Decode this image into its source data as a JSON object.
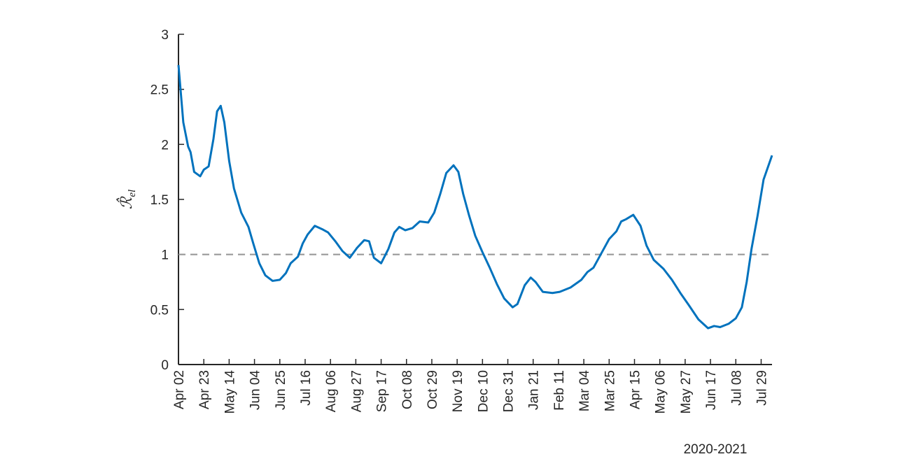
{
  "chart_data": {
    "type": "line",
    "xlabel": "2020-2021",
    "ylabel": {
      "main": "ℛ̂",
      "sub": "el"
    },
    "x": [
      0,
      4,
      8,
      10,
      13,
      18,
      21,
      25,
      29,
      32,
      35,
      38,
      42,
      46,
      52,
      58,
      62,
      67,
      72,
      78,
      84,
      89,
      93,
      99,
      103,
      107,
      113,
      119,
      124,
      130,
      136,
      142,
      148,
      154,
      158,
      162,
      168,
      174,
      179,
      183,
      188,
      194,
      200,
      207,
      212,
      217,
      222,
      228,
      232,
      236,
      241,
      246,
      252,
      258,
      264,
      270,
      277,
      281,
      287,
      292,
      296,
      302,
      310,
      316,
      325,
      334,
      339,
      344,
      350,
      357,
      363,
      367,
      371,
      377,
      383,
      388,
      394,
      402,
      409,
      416,
      423,
      431,
      439,
      444,
      449,
      456,
      462,
      467,
      471,
      475,
      480,
      485,
      492
    ],
    "series": [
      {
        "name": "R_el",
        "color": "#0072bd",
        "values": [
          2.72,
          2.2,
          1.98,
          1.93,
          1.75,
          1.71,
          1.77,
          1.8,
          2.05,
          2.3,
          2.35,
          2.2,
          1.85,
          1.6,
          1.38,
          1.25,
          1.1,
          0.92,
          0.81,
          0.76,
          0.77,
          0.83,
          0.92,
          0.98,
          1.1,
          1.18,
          1.26,
          1.23,
          1.2,
          1.12,
          1.03,
          0.97,
          1.06,
          1.13,
          1.12,
          0.97,
          0.92,
          1.05,
          1.2,
          1.25,
          1.22,
          1.24,
          1.3,
          1.29,
          1.38,
          1.55,
          1.74,
          1.81,
          1.75,
          1.55,
          1.35,
          1.17,
          1.02,
          0.88,
          0.73,
          0.6,
          0.52,
          0.55,
          0.72,
          0.79,
          0.75,
          0.66,
          0.65,
          0.66,
          0.7,
          0.77,
          0.84,
          0.88,
          1.0,
          1.14,
          1.21,
          1.3,
          1.32,
          1.36,
          1.26,
          1.08,
          0.95,
          0.87,
          0.77,
          0.65,
          0.54,
          0.41,
          0.33,
          0.35,
          0.34,
          0.37,
          0.42,
          0.52,
          0.75,
          1.05,
          1.35,
          1.68,
          1.9
        ]
      }
    ],
    "reference_line": {
      "y": 1,
      "color": "#999999",
      "style": "dashed"
    },
    "xlim": [
      0,
      492
    ],
    "ylim": [
      0,
      3
    ],
    "xticks": [
      {
        "value": 0,
        "label": "Apr 02"
      },
      {
        "value": 21,
        "label": "Apr 23"
      },
      {
        "value": 42,
        "label": "May 14"
      },
      {
        "value": 63,
        "label": "Jun 04"
      },
      {
        "value": 84,
        "label": "Jun 25"
      },
      {
        "value": 105,
        "label": "Jul 16"
      },
      {
        "value": 126,
        "label": "Aug 06"
      },
      {
        "value": 147,
        "label": "Aug 27"
      },
      {
        "value": 168,
        "label": "Sep 17"
      },
      {
        "value": 189,
        "label": "Oct 08"
      },
      {
        "value": 210,
        "label": "Oct 29"
      },
      {
        "value": 231,
        "label": "Nov 19"
      },
      {
        "value": 252,
        "label": "Dec 10"
      },
      {
        "value": 273,
        "label": "Dec 31"
      },
      {
        "value": 294,
        "label": "Jan 21"
      },
      {
        "value": 315,
        "label": "Feb 11"
      },
      {
        "value": 336,
        "label": "Mar 04"
      },
      {
        "value": 357,
        "label": "Mar 25"
      },
      {
        "value": 378,
        "label": "Apr 15"
      },
      {
        "value": 399,
        "label": "May 06"
      },
      {
        "value": 420,
        "label": "May 27"
      },
      {
        "value": 441,
        "label": "Jun 17"
      },
      {
        "value": 462,
        "label": "Jul 08"
      },
      {
        "value": 483,
        "label": "Jul 29"
      }
    ],
    "yticks": [
      0,
      0.5,
      1,
      1.5,
      2,
      2.5,
      3
    ],
    "grid": false
  }
}
